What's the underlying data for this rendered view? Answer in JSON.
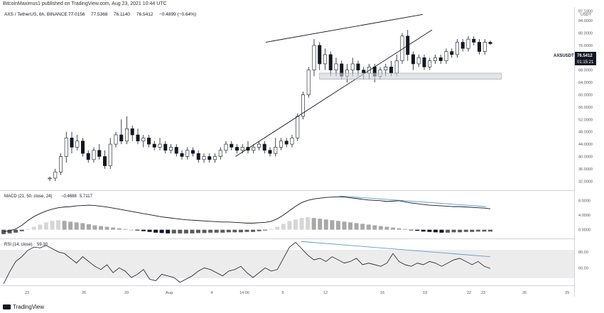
{
  "header": {
    "text": "BitcoinMaximus1 published on TradingView.com, Aug 23, 2021 10:44 UTC"
  },
  "footer": {
    "brand": "TradingView",
    "logo_icon": "tradingview-logo-icon"
  },
  "symbol": {
    "title": "AXS / TetherUS, 6h, BINANCE",
    "o": "77.0156",
    "h": "77.5368",
    "l": "76.1140",
    "c": "76.5412",
    "chg": "−0.4899 (−0.64%)"
  },
  "price_badge": {
    "ticker": "AXSUSDT",
    "price": "76.5412",
    "countdown": "01:15:21",
    "color": "#131722"
  },
  "price_axis": {
    "unit_label": "USDT",
    "ticks": [
      "32.0000",
      "36.0000",
      "40.0000",
      "44.0000",
      "48.0000",
      "52.0000",
      "56.0000",
      "60.0000",
      "64.0000",
      "68.0000",
      "72.0000",
      "76.0000",
      "80.0000",
      "84.0000",
      "87.1000"
    ]
  },
  "x_axis": {
    "labels": [
      "23",
      "26",
      "29",
      "Aug",
      "4",
      "14:00",
      "9",
      "12",
      "16",
      "19",
      "22",
      "23",
      "26",
      "29"
    ]
  },
  "macd": {
    "legend": "MACD (21, 50, close, 24)",
    "v1": "−0.4688",
    "v2": "5.7117",
    "ticks": [
      "0.0000",
      "4.0000",
      "8.0000"
    ]
  },
  "rsi": {
    "legend": "RSI (14, close)",
    "value": "59.30",
    "ticks": [
      "60.00",
      "80.00"
    ]
  },
  "colors": {
    "candle": "#131722",
    "trendline": "#131722",
    "divergence": "#5b9bd5",
    "rsi_band": "#ececec",
    "support_box": "#cfd3d8"
  },
  "chart_data": [
    {
      "type": "candlestick",
      "title": "AXS / TetherUS, 6h, BINANCE",
      "ylim": [
        30,
        87
      ],
      "x_labels": [
        "23",
        "26",
        "29",
        "Aug",
        "4",
        "14:00",
        "9",
        "12",
        "16",
        "19",
        "22",
        "23",
        "26",
        "29"
      ],
      "series": [
        {
          "name": "AXSUSDT",
          "values": [
            [
              33,
              33,
              32,
              33.5
            ],
            [
              33,
              35,
              32,
              36
            ],
            [
              35,
              40,
              34,
              41
            ],
            [
              40,
              46,
              38,
              48
            ],
            [
              46,
              43,
              41,
              48
            ],
            [
              43,
              45,
              42,
              47
            ],
            [
              45,
              41,
              40,
              46
            ],
            [
              41,
              39,
              38,
              42
            ],
            [
              39,
              42,
              38,
              43
            ],
            [
              42,
              40,
              39,
              44
            ],
            [
              40,
              37,
              36,
              42
            ],
            [
              37,
              44,
              36,
              46
            ],
            [
              44,
              47,
              43,
              48
            ],
            [
              47,
              45,
              44,
              52
            ],
            [
              45,
              49,
              44,
              53
            ],
            [
              49,
              47,
              45,
              50
            ],
            [
              47,
              45,
              44,
              49
            ],
            [
              45,
              46,
              43,
              47
            ],
            [
              46,
              44,
              43,
              47
            ],
            [
              44,
              43,
              42,
              45
            ],
            [
              43,
              44,
              42,
              46
            ],
            [
              44,
              42,
              41,
              45
            ],
            [
              42,
              43,
              41,
              44
            ],
            [
              43,
              41,
              40,
              44
            ],
            [
              41,
              40,
              39,
              42
            ],
            [
              40,
              42,
              39,
              43
            ],
            [
              42,
              41,
              40,
              43
            ],
            [
              41,
              39,
              38,
              42
            ],
            [
              39,
              40,
              38,
              41
            ],
            [
              40,
              39,
              38,
              41
            ],
            [
              39,
              40,
              38,
              41
            ],
            [
              40,
              42,
              39,
              43
            ],
            [
              42,
              44,
              41,
              45
            ],
            [
              44,
              43,
              42,
              45
            ],
            [
              43,
              42,
              41,
              44
            ],
            [
              42,
              43,
              41,
              44
            ],
            [
              43,
              42,
              41,
              45
            ],
            [
              42,
              43,
              41,
              44
            ],
            [
              43,
              44,
              42,
              45
            ],
            [
              44,
              42,
              41,
              45
            ],
            [
              42,
              41,
              40,
              43
            ],
            [
              41,
              43,
              40,
              46
            ],
            [
              43,
              45,
              42,
              46
            ],
            [
              45,
              44,
              43,
              46
            ],
            [
              44,
              46,
              43,
              47
            ],
            [
              46,
              53,
              45,
              54
            ],
            [
              53,
              60,
              52,
              61
            ],
            [
              60,
              68,
              59,
              69
            ],
            [
              68,
              76,
              66,
              78
            ],
            [
              76,
              70,
              68,
              77
            ],
            [
              70,
              73,
              68,
              75
            ],
            [
              73,
              68,
              66,
              74
            ],
            [
              68,
              70,
              66,
              72
            ],
            [
              70,
              66,
              65,
              71
            ],
            [
              66,
              68,
              64,
              70
            ],
            [
              68,
              70,
              66,
              72
            ],
            [
              70,
              68,
              66,
              71
            ],
            [
              68,
              67,
              65,
              69
            ],
            [
              67,
              69,
              65,
              70
            ],
            [
              69,
              66,
              64,
              70
            ],
            [
              66,
              68,
              65,
              69
            ],
            [
              68,
              69,
              66,
              70
            ],
            [
              69,
              67,
              66,
              71
            ],
            [
              67,
              71,
              66,
              73
            ],
            [
              71,
              79,
              70,
              80
            ],
            [
              79,
              73,
              71,
              81
            ],
            [
              73,
              70,
              68,
              74
            ],
            [
              70,
              72,
              69,
              73
            ],
            [
              72,
              69,
              68,
              73
            ],
            [
              69,
              71,
              68,
              72
            ],
            [
              71,
              72,
              70,
              73
            ],
            [
              72,
              71,
              70,
              73
            ],
            [
              71,
              74,
              70,
              75
            ],
            [
              74,
              73,
              72,
              75
            ],
            [
              73,
              77,
              72,
              78
            ],
            [
              77,
              75,
              74,
              78
            ],
            [
              75,
              78,
              74,
              79
            ],
            [
              78,
              77,
              76,
              79
            ],
            [
              77,
              74,
              73,
              78
            ],
            [
              74,
              77,
              73,
              78
            ],
            [
              77,
              76.54,
              76.11,
              77.54
            ]
          ]
        }
      ],
      "trendlines": {
        "resistance": {
          "from": [
            0.44,
            77
          ],
          "to": [
            0.7,
            86
          ]
        },
        "support": {
          "from": [
            0.39,
            40
          ],
          "to": [
            0.7,
            79
          ]
        }
      },
      "support_zone": [
        65,
        67
      ]
    },
    {
      "type": "bar",
      "title": "MACD (21, 50, close, 24)",
      "ylim": [
        -2,
        10
      ],
      "series": [
        {
          "name": "MACD",
          "values": [
            -0.5,
            -0.3,
            0.2,
            1.2,
            2.5,
            3.6,
            4.4,
            5.1,
            5.6,
            6,
            6.2,
            6.3,
            6.5,
            6.6,
            6.7,
            6.6,
            6.4,
            6.2,
            5.9,
            5.6,
            5.3,
            5.0,
            4.7,
            4.4,
            4.1,
            3.8,
            3.5,
            3.3,
            3.1,
            2.9,
            2.7,
            2.6,
            2.5,
            2.4,
            2.3,
            2.2,
            2.1,
            2.1,
            2.0,
            1.9,
            1.8,
            1.8,
            1.9,
            2.0,
            2.3,
            3.0,
            4.0,
            5.2,
            6.4,
            7.4,
            8.0,
            8.4,
            8.6,
            8.8,
            8.9,
            9.0,
            8.9,
            8.7,
            8.5,
            8.3,
            8.1,
            8.0,
            7.9,
            7.7,
            7.8,
            7.9,
            7.6,
            7.3,
            7.1,
            6.9,
            6.7,
            6.6,
            6.5,
            6.4,
            6.3,
            6.3,
            6.2,
            6.1,
            6.0,
            5.9,
            5.7
          ]
        }
      ],
      "histogram": [
        -1.2,
        -1.0,
        -0.8,
        -0.4,
        0.2,
        0.8,
        1.4,
        2.0,
        2.4,
        2.6,
        2.4,
        2.2,
        2.0,
        1.8,
        1.5,
        1.2,
        1.0,
        0.8,
        0.6,
        0.4,
        0.2,
        0.0,
        -0.2,
        -0.4,
        -0.6,
        -0.8,
        -0.9,
        -1.0,
        -1.0,
        -1.0,
        -1.0,
        -1.0,
        -0.9,
        -0.9,
        -0.8,
        -0.8,
        -0.8,
        -0.7,
        -0.7,
        -0.7,
        -0.6,
        -0.6,
        -0.4,
        -0.2,
        0.2,
        0.8,
        1.6,
        2.4,
        2.8,
        3.2,
        3.4,
        3.2,
        3.0,
        2.8,
        2.6,
        2.4,
        2.2,
        2.0,
        1.8,
        1.6,
        1.4,
        1.2,
        1.0,
        0.8,
        0.6,
        0.4,
        0.2,
        -0.1,
        -0.3,
        -0.5,
        -0.6,
        -0.7,
        -0.8,
        -0.8,
        -0.7,
        -0.7,
        -0.6,
        -0.6,
        -0.5,
        -0.5,
        -0.5
      ]
    },
    {
      "type": "line",
      "title": "RSI (14, close)",
      "ylim": [
        40,
        95
      ],
      "band": [
        30,
        70
      ],
      "series": [
        {
          "name": "RSI",
          "values": [
            40,
            55,
            68,
            74,
            82,
            86,
            85,
            88,
            84,
            80,
            78,
            72,
            66,
            74,
            68,
            62,
            58,
            64,
            54,
            60,
            56,
            48,
            52,
            58,
            46,
            44,
            52,
            50,
            48,
            42,
            46,
            50,
            56,
            60,
            58,
            54,
            50,
            56,
            58,
            62,
            54,
            48,
            54,
            60,
            56,
            58,
            72,
            86,
            92,
            84,
            76,
            70,
            72,
            68,
            74,
            70,
            66,
            68,
            72,
            64,
            66,
            64,
            62,
            66,
            78,
            68,
            64,
            62,
            66,
            64,
            68,
            66,
            62,
            66,
            70,
            72,
            68,
            64,
            68,
            62,
            59.3
          ]
        }
      ]
    }
  ]
}
